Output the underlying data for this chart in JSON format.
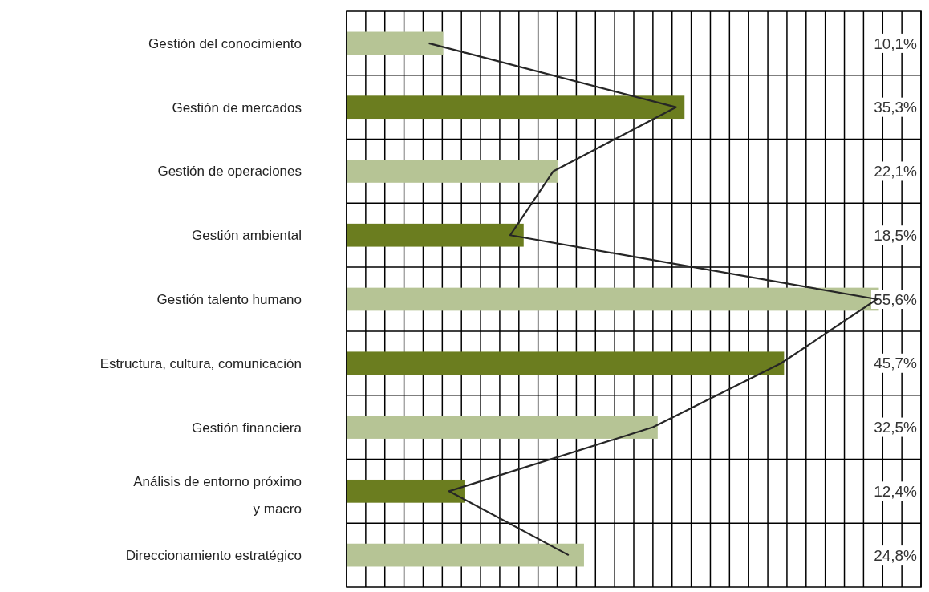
{
  "chart_data": {
    "type": "bar",
    "orientation": "horizontal",
    "categories": [
      "Gestión del conocimiento",
      "Gestión de mercados",
      "Gestión de operaciones",
      "Gestión ambiental",
      "Gestión talento humano",
      "Estructura, cultura, comunicación",
      "Gestión financiera",
      "Análisis de entorno próximo y macro",
      "Direccionamiento estratégico"
    ],
    "series": [
      {
        "type": "bar",
        "colors": [
          "#b6c495",
          "#6b7d1f",
          "#b6c495",
          "#6b7d1f",
          "#b6c495",
          "#6b7d1f",
          "#b6c495",
          "#6b7d1f",
          "#b6c495"
        ],
        "values": [
          10.1,
          35.3,
          22.1,
          18.5,
          55.6,
          45.7,
          32.5,
          12.4,
          24.8
        ],
        "value_labels": [
          "10,1%",
          "35,3%",
          "22,1%",
          "18,5%",
          "55,6%",
          "45,7%",
          "32,5%",
          "12,4%",
          "24,8%"
        ]
      },
      {
        "type": "line",
        "color": "#262626",
        "values": [
          8.6,
          34.4,
          21.6,
          17.1,
          55.4,
          45.4,
          32,
          10.7,
          23.2
        ]
      }
    ],
    "xlim": [
      0,
      60
    ],
    "xticks": [
      {
        "value": 0,
        "label": null
      },
      {
        "value": 2,
        "label": null
      },
      {
        "value": 4,
        "label": null
      },
      {
        "value": 6,
        "label": null
      },
      {
        "value": 8,
        "label": null
      },
      {
        "value": 10,
        "label": null
      },
      {
        "value": 12,
        "label": null
      },
      {
        "value": 14,
        "label": null
      },
      {
        "value": 16,
        "label": null
      },
      {
        "value": 18,
        "label": null
      },
      {
        "value": 20,
        "label": null
      },
      {
        "value": 22,
        "label": null
      },
      {
        "value": 24,
        "label": null
      },
      {
        "value": 26,
        "label": null
      },
      {
        "value": 28,
        "label": null
      },
      {
        "value": 30,
        "label": null
      },
      {
        "value": 32,
        "label": null
      },
      {
        "value": 34,
        "label": null
      },
      {
        "value": 36,
        "label": null
      },
      {
        "value": 38,
        "label": null
      },
      {
        "value": 40,
        "label": null
      },
      {
        "value": 42,
        "label": null
      },
      {
        "value": 44,
        "label": null
      },
      {
        "value": 46,
        "label": null
      },
      {
        "value": 48,
        "label": null
      },
      {
        "value": 50,
        "label": null
      },
      {
        "value": 52,
        "label": null
      },
      {
        "value": 54,
        "label": null
      },
      {
        "value": 56,
        "label": null
      },
      {
        "value": 58,
        "label": null
      },
      {
        "value": 60,
        "label": null
      }
    ],
    "grid": true,
    "tick_labels": "y"
  }
}
